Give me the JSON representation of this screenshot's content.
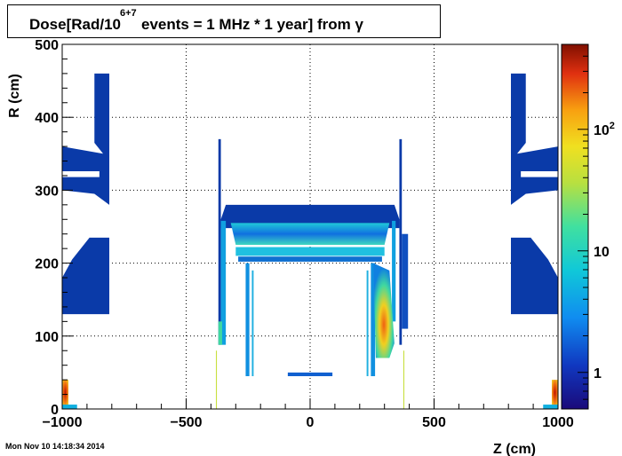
{
  "title": {
    "prefix": "Dose[Rad/10",
    "exponent": "6+7",
    "suffix": " events = 1 MHz * 1 year] from γ"
  },
  "timestamp": "Mon Nov 10 14:18:34 2014",
  "chart_data": {
    "type": "heatmap",
    "xlabel": "Z (cm)",
    "ylabel": "R (cm)",
    "xlim": [
      -1000,
      1000
    ],
    "ylim": [
      0,
      500
    ],
    "x_ticks": [
      {
        "v": -1000,
        "label": "−1000"
      },
      {
        "v": -500,
        "label": "−500"
      },
      {
        "v": 0,
        "label": "0"
      },
      {
        "v": 500,
        "label": "500"
      },
      {
        "v": 1000,
        "label": "1000"
      }
    ],
    "y_ticks": [
      {
        "v": 0,
        "label": "0"
      },
      {
        "v": 100,
        "label": "100"
      },
      {
        "v": 200,
        "label": "200"
      },
      {
        "v": 300,
        "label": "300"
      },
      {
        "v": 400,
        "label": "400"
      },
      {
        "v": 500,
        "label": "500"
      }
    ],
    "grid": true,
    "colorscale": {
      "scale": "log",
      "min": 0.5,
      "max": 500,
      "tick_labels": [
        {
          "v": 1,
          "label": "1"
        },
        {
          "v": 10,
          "label": "10"
        },
        {
          "v": 100,
          "label": "10",
          "sup": "2"
        }
      ]
    },
    "regions": [
      {
        "name": "left-muon-upper",
        "z": [
          -1000,
          -810
        ],
        "r": [
          280,
          360
        ],
        "dose": 0.8
      },
      {
        "name": "left-muon-lower",
        "z": [
          -1000,
          -810
        ],
        "r": [
          130,
          235
        ],
        "dose": 0.8
      },
      {
        "name": "right-muon-upper",
        "z": [
          810,
          1000
        ],
        "r": [
          280,
          360
        ],
        "dose": 0.8
      },
      {
        "name": "right-muon-lower",
        "z": [
          810,
          1000
        ],
        "r": [
          130,
          235
        ],
        "dose": 0.8
      },
      {
        "name": "calorimeter-barrel",
        "z": [
          -370,
          370
        ],
        "r": [
          88,
          285
        ],
        "dose": 1.2
      },
      {
        "name": "barrel-layer",
        "z": [
          -340,
          340
        ],
        "r": [
          230,
          255
        ],
        "dose": 3
      },
      {
        "name": "endcap-hot-spot",
        "z": [
          255,
          320
        ],
        "r": [
          70,
          200
        ],
        "dose": 40
      },
      {
        "name": "forward-left",
        "z": [
          -1000,
          -975
        ],
        "r": [
          5,
          40
        ],
        "dose": 200
      },
      {
        "name": "forward-right",
        "z": [
          975,
          1000
        ],
        "r": [
          5,
          40
        ],
        "dose": 200
      }
    ]
  }
}
